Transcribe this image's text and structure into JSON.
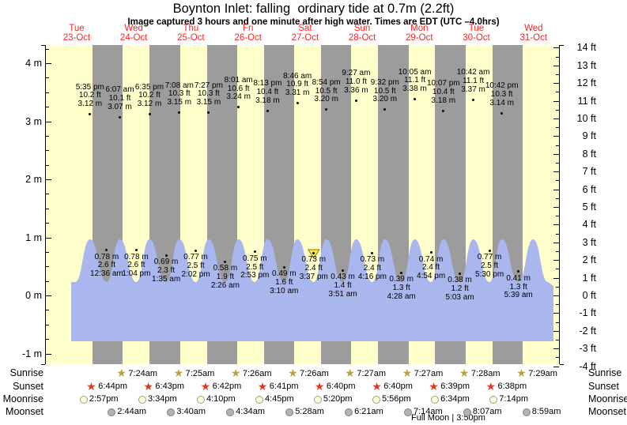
{
  "title": "Boynton Inlet: falling  ordinary tide at 0.7m (2.2ft)",
  "subtitle": "Image captured 3 hours and one minute after high water. Times are EDT (UTC –4.0hrs)",
  "days": [
    {
      "weekday": "Tue",
      "date": "23-Oct"
    },
    {
      "weekday": "Wed",
      "date": "24-Oct"
    },
    {
      "weekday": "Thu",
      "date": "25-Oct"
    },
    {
      "weekday": "Fri",
      "date": "26-Oct"
    },
    {
      "weekday": "Sat",
      "date": "27-Oct"
    },
    {
      "weekday": "Sun",
      "date": "28-Oct"
    },
    {
      "weekday": "Mon",
      "date": "29-Oct"
    },
    {
      "weekday": "Tue",
      "date": "30-Oct"
    },
    {
      "weekday": "Wed",
      "date": "31-Oct"
    }
  ],
  "chart_data": {
    "type": "area",
    "title": "Boynton Inlet tide curve",
    "y_axis_left": {
      "unit": "m",
      "ticks": [
        4,
        3,
        2,
        1,
        0,
        -1
      ]
    },
    "y_axis_right": {
      "unit": "ft",
      "ticks": [
        14,
        13,
        12,
        11,
        10,
        9,
        8,
        7,
        6,
        5,
        4,
        3,
        2,
        1,
        0,
        -1,
        -2,
        -3,
        -4
      ]
    },
    "high_tides": [
      {
        "day": 0,
        "time": "5:35 pm",
        "ft": "10.2 ft",
        "m": "3.12 m"
      },
      {
        "day": 1,
        "time": "6:07 am",
        "ft": "10.1 ft",
        "m": "3.07 m"
      },
      {
        "day": 1,
        "time": "6:35 pm",
        "ft": "10.2 ft",
        "m": "3.12 m"
      },
      {
        "day": 2,
        "time": "7:08 am",
        "ft": "10.3 ft",
        "m": "3.15 m"
      },
      {
        "day": 2,
        "time": "7:27 pm",
        "ft": "10.3 ft",
        "m": "3.15 m"
      },
      {
        "day": 3,
        "time": "8:01 am",
        "ft": "10.6 ft",
        "m": "3.24 m"
      },
      {
        "day": 3,
        "time": "8:13 pm",
        "ft": "10.4 ft",
        "m": "3.18 m"
      },
      {
        "day": 4,
        "time": "8:46 am",
        "ft": "10.9 ft",
        "m": "3.31 m"
      },
      {
        "day": 4,
        "time": "8:54 pm",
        "ft": "10.5 ft",
        "m": "3.20 m"
      },
      {
        "day": 5,
        "time": "9:27 am",
        "ft": "11.0 ft",
        "m": "3.36 m"
      },
      {
        "day": 5,
        "time": "9:32 pm",
        "ft": "10.5 ft",
        "m": "3.20 m"
      },
      {
        "day": 6,
        "time": "10:05 am",
        "ft": "11.1 ft",
        "m": "3.38 m"
      },
      {
        "day": 6,
        "time": "10:07 pm",
        "ft": "10.4 ft",
        "m": "3.18 m"
      },
      {
        "day": 7,
        "time": "10:42 am",
        "ft": "11.1 ft",
        "m": "3.37 m"
      },
      {
        "day": 7,
        "time": "10:42 pm",
        "ft": "10.3 ft",
        "m": "3.14 m"
      }
    ],
    "low_tides": [
      {
        "day": 1,
        "time": "12:36 am",
        "ft": "2.6 ft",
        "m": "0.78 m"
      },
      {
        "day": 1,
        "time": "1:04 pm",
        "ft": "2.6 ft",
        "m": "0.78 m"
      },
      {
        "day": 2,
        "time": "1:35 am",
        "ft": "2.3 ft",
        "m": "0.69 m"
      },
      {
        "day": 2,
        "time": "2:02 pm",
        "ft": "2.5 ft",
        "m": "0.77 m"
      },
      {
        "day": 3,
        "time": "2:26 am",
        "ft": "1.9 ft",
        "m": "0.58 m"
      },
      {
        "day": 3,
        "time": "2:53 pm",
        "ft": "2.5 ft",
        "m": "0.75 m"
      },
      {
        "day": 4,
        "time": "3:10 am",
        "ft": "1.6 ft",
        "m": "0.49 m"
      },
      {
        "day": 4,
        "time": "3:37 pm",
        "ft": "2.4 ft",
        "m": "0.73 m",
        "now": true
      },
      {
        "day": 5,
        "time": "3:51 am",
        "ft": "1.4 ft",
        "m": "0.43 m"
      },
      {
        "day": 5,
        "time": "4:16 pm",
        "ft": "2.4 ft",
        "m": "0.73 m"
      },
      {
        "day": 6,
        "time": "4:28 am",
        "ft": "1.3 ft",
        "m": "0.39 m"
      },
      {
        "day": 6,
        "time": "4:54 pm",
        "ft": "2.4 ft",
        "m": "0.74 m"
      },
      {
        "day": 7,
        "time": "5:03 am",
        "ft": "1.2 ft",
        "m": "0.38 m"
      },
      {
        "day": 7,
        "time": "5:30 pm",
        "ft": "2.5 ft",
        "m": "0.77 m"
      },
      {
        "day": 8,
        "time": "5:39 am",
        "ft": "1.3 ft",
        "m": "0.41 m"
      }
    ]
  },
  "astro": {
    "row_labels": [
      "Sunrise",
      "Sunset",
      "Moonrise",
      "Moonset"
    ],
    "sunrise": [
      {
        "day": 1,
        "time": "7:24am"
      },
      {
        "day": 2,
        "time": "7:25am"
      },
      {
        "day": 3,
        "time": "7:26am"
      },
      {
        "day": 4,
        "time": "7:26am"
      },
      {
        "day": 5,
        "time": "7:27am"
      },
      {
        "day": 6,
        "time": "7:27am"
      },
      {
        "day": 7,
        "time": "7:28am"
      },
      {
        "day": 8,
        "time": "7:29am"
      }
    ],
    "sunset": [
      {
        "day": 0,
        "time": "6:44pm"
      },
      {
        "day": 1,
        "time": "6:43pm"
      },
      {
        "day": 2,
        "time": "6:42pm"
      },
      {
        "day": 3,
        "time": "6:41pm"
      },
      {
        "day": 4,
        "time": "6:40pm"
      },
      {
        "day": 5,
        "time": "6:40pm"
      },
      {
        "day": 6,
        "time": "6:39pm"
      },
      {
        "day": 7,
        "time": "6:38pm"
      }
    ],
    "moonrise": [
      {
        "day": 0,
        "time": "2:57pm"
      },
      {
        "day": 1,
        "time": "3:34pm"
      },
      {
        "day": 2,
        "time": "4:10pm"
      },
      {
        "day": 3,
        "time": "4:45pm"
      },
      {
        "day": 4,
        "time": "5:20pm"
      },
      {
        "day": 5,
        "time": "5:56pm"
      },
      {
        "day": 6,
        "time": "6:34pm"
      },
      {
        "day": 7,
        "time": "7:14pm"
      }
    ],
    "moonset": [
      {
        "day": 1,
        "time": "2:44am"
      },
      {
        "day": 2,
        "time": "3:40am"
      },
      {
        "day": 3,
        "time": "4:34am"
      },
      {
        "day": 4,
        "time": "5:28am"
      },
      {
        "day": 5,
        "time": "6:21am"
      },
      {
        "day": 6,
        "time": "7:14am"
      },
      {
        "day": 7,
        "time": "8:07am"
      },
      {
        "day": 8,
        "time": "8:59am"
      }
    ],
    "footer": "Full Moon | 3:50pm"
  },
  "colors": {
    "day_bg": "#ffffcc",
    "night_bg": "#9c9c9c",
    "water": "#aab6ee",
    "date_red": "#ff2222",
    "sunrise_star": "#b8a433",
    "sunset_star": "#dd3a22",
    "moonrise_fill": "#ffffd4",
    "moonset_fill": "#b3b3b3",
    "now_marker": "#ffe84a"
  }
}
